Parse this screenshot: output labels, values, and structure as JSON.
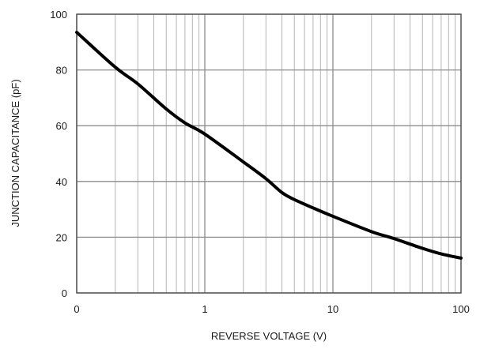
{
  "chart_data": {
    "type": "line",
    "xlabel": "REVERSE VOLTAGE (V)",
    "ylabel": "JUNCTION CAPACITANCE (pF)",
    "x_scale": "log",
    "xlim": [
      0.1,
      100
    ],
    "ylim": [
      0,
      100
    ],
    "grid": true,
    "x_tick_labels": [
      {
        "value": 0.1,
        "label": "0"
      },
      {
        "value": 1,
        "label": "1"
      },
      {
        "value": 10,
        "label": "10"
      },
      {
        "value": 100,
        "label": "100"
      }
    ],
    "y_ticks": [
      0,
      20,
      40,
      60,
      80,
      100
    ],
    "series": [
      {
        "color": "#000000",
        "x": [
          0.1,
          0.2,
          0.3,
          0.5,
          0.7,
          1,
          2,
          3,
          4,
          5,
          7,
          10,
          20,
          30,
          50,
          70,
          100
        ],
        "y": [
          93.5,
          81,
          75,
          66,
          61,
          57,
          47,
          41,
          36,
          33.5,
          30.5,
          27.5,
          22,
          19.5,
          16,
          14,
          12.5
        ]
      }
    ]
  }
}
